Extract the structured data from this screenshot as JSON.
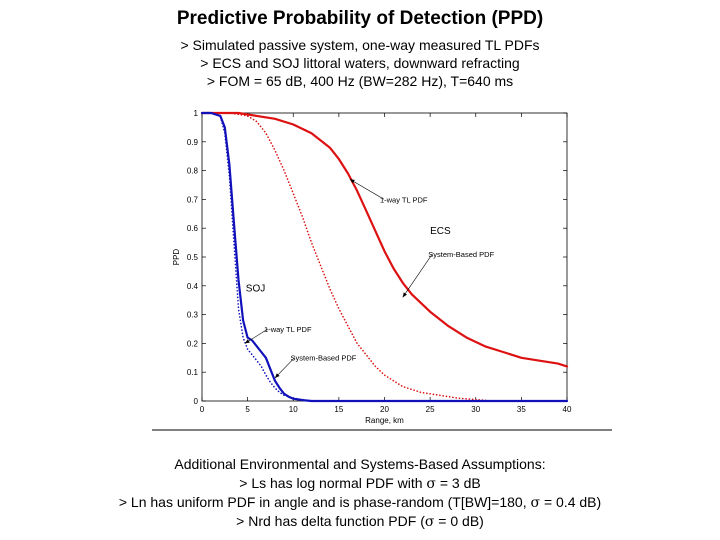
{
  "header": {
    "title": "Predictive Probability of Detection (PPD)",
    "line1": "> Simulated passive system, one-way measured TL PDFs",
    "line2": "> ECS and SOJ littoral waters, downward refracting",
    "line3": "> FOM = 65 dB, 400 Hz (BW=282 Hz), T=640 ms"
  },
  "footer": {
    "heading": "Additional Environmental and Systems-Based Assumptions:",
    "line1_pre": "> Ls has log normal PDF with ",
    "line1_post": " = 3 dB",
    "line2_pre": "> Ln has uniform PDF in angle and is phase-random (T[BW]=180, ",
    "line2_post": " = 0.4 dB)",
    "line3_pre": "> Nrd has delta function PDF (",
    "line3_post": " = 0 dB)",
    "sigma": "σ"
  },
  "chart_data": {
    "type": "line",
    "xlabel": "Range, km",
    "ylabel": "PPD",
    "xlim": [
      0,
      40
    ],
    "ylim": [
      0,
      1
    ],
    "xticks": [
      0,
      5,
      10,
      15,
      20,
      25,
      30,
      35,
      40
    ],
    "yticks": [
      0,
      0.1,
      0.2,
      0.3,
      0.4,
      0.5,
      0.6,
      0.7,
      0.8,
      0.9,
      1
    ],
    "ytick_labels": [
      "0",
      "0.1",
      "0.2",
      "0.3",
      "0.4",
      "0.5",
      "0.6",
      "0.7",
      "0.8",
      "0.9",
      "1"
    ],
    "series": [
      {
        "label": "ECS System-Based PDF",
        "color": "#dd1111",
        "style": "solid",
        "x": [
          0,
          2,
          4,
          6,
          8,
          10,
          12,
          14,
          15,
          16,
          17,
          18,
          19,
          20,
          21,
          22,
          23,
          24,
          25,
          27,
          29,
          31,
          33,
          35,
          37,
          39,
          40
        ],
        "y": [
          1.0,
          1.0,
          1.0,
          0.99,
          0.98,
          0.96,
          0.93,
          0.88,
          0.84,
          0.79,
          0.73,
          0.66,
          0.59,
          0.52,
          0.46,
          0.41,
          0.37,
          0.34,
          0.31,
          0.26,
          0.22,
          0.19,
          0.17,
          0.15,
          0.14,
          0.13,
          0.12
        ]
      },
      {
        "label": "ECS 1-way TL PDF",
        "color": "#dd1111",
        "style": "dotted",
        "x": [
          0,
          3,
          5,
          6,
          7,
          8,
          9,
          10,
          11,
          12,
          13,
          14,
          15,
          16,
          17,
          18,
          19,
          20,
          22,
          24,
          26,
          28,
          30,
          32,
          34,
          36,
          38,
          40
        ],
        "y": [
          1.0,
          1.0,
          0.99,
          0.97,
          0.93,
          0.87,
          0.8,
          0.72,
          0.64,
          0.55,
          0.47,
          0.39,
          0.32,
          0.26,
          0.2,
          0.16,
          0.12,
          0.09,
          0.05,
          0.03,
          0.02,
          0.01,
          0.005,
          0.0,
          0.0,
          0.0,
          0.0,
          0.0
        ]
      },
      {
        "label": "SOJ System-Based PDF",
        "color": "#1111bb",
        "style": "solid",
        "x": [
          0,
          1,
          2,
          2.5,
          3,
          3.5,
          4,
          4.5,
          5,
          5.5,
          6,
          6.5,
          7,
          7.5,
          8,
          8.5,
          9,
          9.5,
          10,
          11,
          12,
          14,
          16,
          20,
          30,
          40
        ],
        "y": [
          1.0,
          1.0,
          0.99,
          0.95,
          0.82,
          0.62,
          0.42,
          0.28,
          0.22,
          0.21,
          0.19,
          0.17,
          0.15,
          0.11,
          0.07,
          0.045,
          0.025,
          0.015,
          0.008,
          0.003,
          0.0,
          0.0,
          0.0,
          0.0,
          0.0,
          0.0
        ]
      },
      {
        "label": "SOJ 1-way TL PDF",
        "color": "#1111bb",
        "style": "dotted",
        "x": [
          0,
          1,
          2,
          2.5,
          3,
          3.5,
          4,
          4.5,
          5,
          5.5,
          6,
          6.5,
          7,
          7.5,
          8,
          8.5,
          9,
          10,
          11,
          12,
          14,
          16,
          20,
          30,
          40
        ],
        "y": [
          1.0,
          1.0,
          0.99,
          0.93,
          0.78,
          0.55,
          0.32,
          0.22,
          0.18,
          0.16,
          0.14,
          0.12,
          0.09,
          0.065,
          0.045,
          0.03,
          0.02,
          0.01,
          0.005,
          0.0,
          0.0,
          0.0,
          0.0,
          0.0,
          0.0
        ]
      }
    ],
    "annotations": [
      {
        "text": "1-way TL PDF",
        "x": 19.5,
        "y": 0.69,
        "ax": 16.2,
        "ay": 0.77
      },
      {
        "text": "ECS",
        "x": 25,
        "y": 0.58
      },
      {
        "text": "System-Based PDF",
        "x": 24.8,
        "y": 0.5,
        "ax": 22.0,
        "ay": 0.36
      },
      {
        "text": "SOJ",
        "x": 4.8,
        "y": 0.38
      },
      {
        "text": "1-way TL PDF",
        "x": 6.8,
        "y": 0.24,
        "ax": 4.7,
        "ay": 0.2
      },
      {
        "text": "System-Based PDF",
        "x": 9.7,
        "y": 0.14,
        "ax": 8.0,
        "ay": 0.08
      }
    ]
  }
}
